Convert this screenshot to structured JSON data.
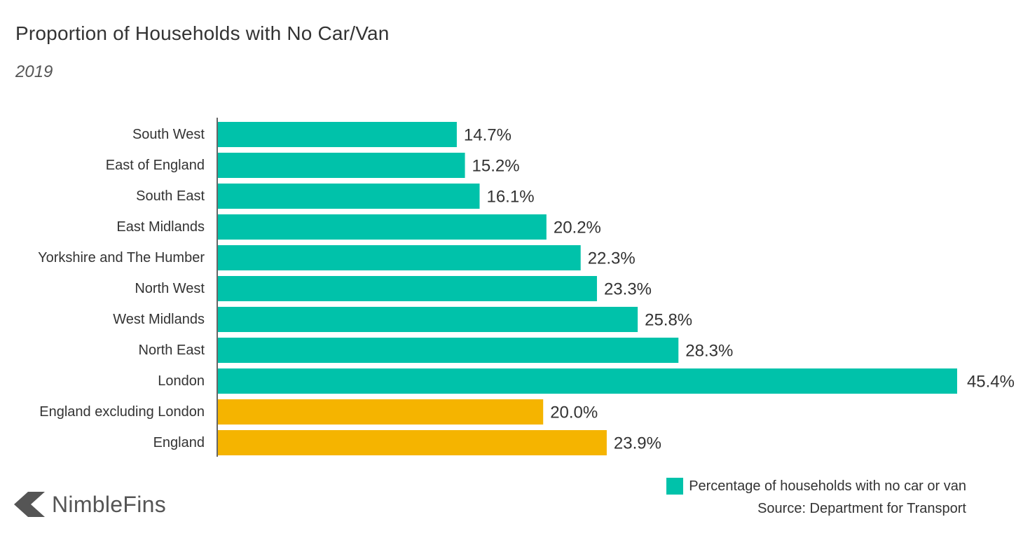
{
  "header": {
    "title": "Proportion of Households with No Car/Van",
    "subtitle": "2019"
  },
  "chart_data": {
    "type": "bar",
    "orientation": "horizontal",
    "title": "Proportion of Households with No Car/Van",
    "subtitle": "2019",
    "xlabel": "",
    "ylabel": "",
    "xlim": [
      0,
      45.4
    ],
    "grid": false,
    "value_suffix": "%",
    "categories": [
      "South West",
      "East of England",
      "South East",
      "East Midlands",
      "Yorkshire and The Humber",
      "North West",
      "West Midlands",
      "North East",
      "London",
      "England excluding London",
      "England"
    ],
    "values": [
      14.7,
      15.2,
      16.1,
      20.2,
      22.3,
      23.3,
      25.8,
      28.3,
      45.4,
      20.0,
      23.9
    ],
    "value_labels": [
      "14.7%",
      "15.2%",
      "16.1%",
      "20.2%",
      "22.3%",
      "23.3%",
      "25.8%",
      "28.3%",
      "45.4%",
      "20.0%",
      "23.9%"
    ],
    "bar_colors": [
      "#00c2aa",
      "#00c2aa",
      "#00c2aa",
      "#00c2aa",
      "#00c2aa",
      "#00c2aa",
      "#00c2aa",
      "#00c2aa",
      "#00c2aa",
      "#f5b400",
      "#f5b400"
    ],
    "legend": {
      "position": "bottom-right",
      "entries": [
        {
          "label": "Percentage of households with no car or van",
          "color": "#00c2aa"
        }
      ]
    }
  },
  "footer": {
    "source": "Source: Department for Transport",
    "brand": "NimbleFins",
    "brand_icon": "nimblefins-logo-icon"
  },
  "colors": {
    "teal": "#00c2aa",
    "amber": "#f5b400",
    "axis": "#333333",
    "text": "#333333",
    "brand_gray": "#555555"
  }
}
